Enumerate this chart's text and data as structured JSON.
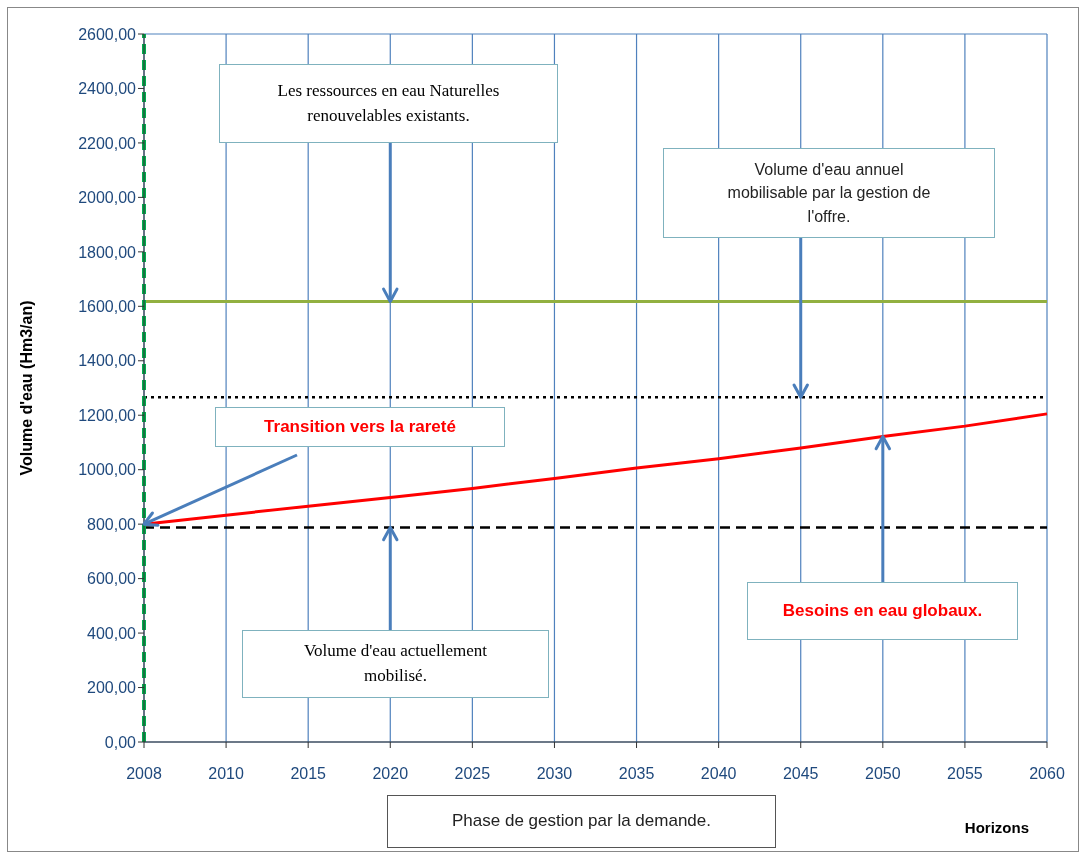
{
  "chart_data": {
    "type": "line",
    "xlabel": "Horizons",
    "ylabel": "Volume d'eau (Hm3/an)",
    "categories": [
      "2008",
      "2010",
      "2015",
      "2020",
      "2025",
      "2030",
      "2035",
      "2040",
      "2045",
      "2050",
      "2055",
      "2060"
    ],
    "series": [
      {
        "color": "#ff0000",
        "values": [
          800,
          833,
          866,
          898,
          931,
          968,
          1006,
          1040,
          1080,
          1122,
          1160,
          1205
        ]
      }
    ],
    "ylim": [
      0,
      2600
    ],
    "yticks": [
      {
        "value": 0,
        "label": "0,00"
      },
      {
        "value": 200,
        "label": "200,00"
      },
      {
        "value": 400,
        "label": "400,00"
      },
      {
        "value": 600,
        "label": "600,00"
      },
      {
        "value": 800,
        "label": "800,00"
      },
      {
        "value": 1000,
        "label": "1000,00"
      },
      {
        "value": 1200,
        "label": "1200,00"
      },
      {
        "value": 1400,
        "label": "1400,00"
      },
      {
        "value": 1600,
        "label": "1600,00"
      },
      {
        "value": 1800,
        "label": "1800,00"
      },
      {
        "value": 2000,
        "label": "2000,00"
      },
      {
        "value": 2200,
        "label": "2200,00"
      },
      {
        "value": 2400,
        "label": "2400,00"
      },
      {
        "value": 2600,
        "label": "2600,00"
      }
    ],
    "grid": true,
    "ref_lines": [
      {
        "axis": "y",
        "value": 1618,
        "color": "#92b040"
      },
      {
        "axis": "y",
        "value": 1266,
        "color": "#000000",
        "line_style": "dotted"
      },
      {
        "axis": "y",
        "value": 788,
        "color": "#000000",
        "line_style": "dashed"
      },
      {
        "axis": "x",
        "value": "2008",
        "color": "#00b050",
        "line_style": "dashed"
      }
    ],
    "annotations": [
      {
        "text": "Les ressources en eau Naturelles renouvelables existants.",
        "x": "2020",
        "y": 1618
      },
      {
        "text": "Volume d'eau annuel mobilisable par la gestion de l'offre.",
        "x": "2045",
        "y": 1266
      },
      {
        "text": "Transition vers la rareté",
        "x": "2008",
        "y": 800
      },
      {
        "text": "Besoins en eau globaux.",
        "x": "2050",
        "y": 1122
      },
      {
        "text": "Volume d'eau actuellement mobilisé.",
        "x": "2020",
        "y": 788
      },
      "Phase de gestion par la demande."
    ]
  }
}
